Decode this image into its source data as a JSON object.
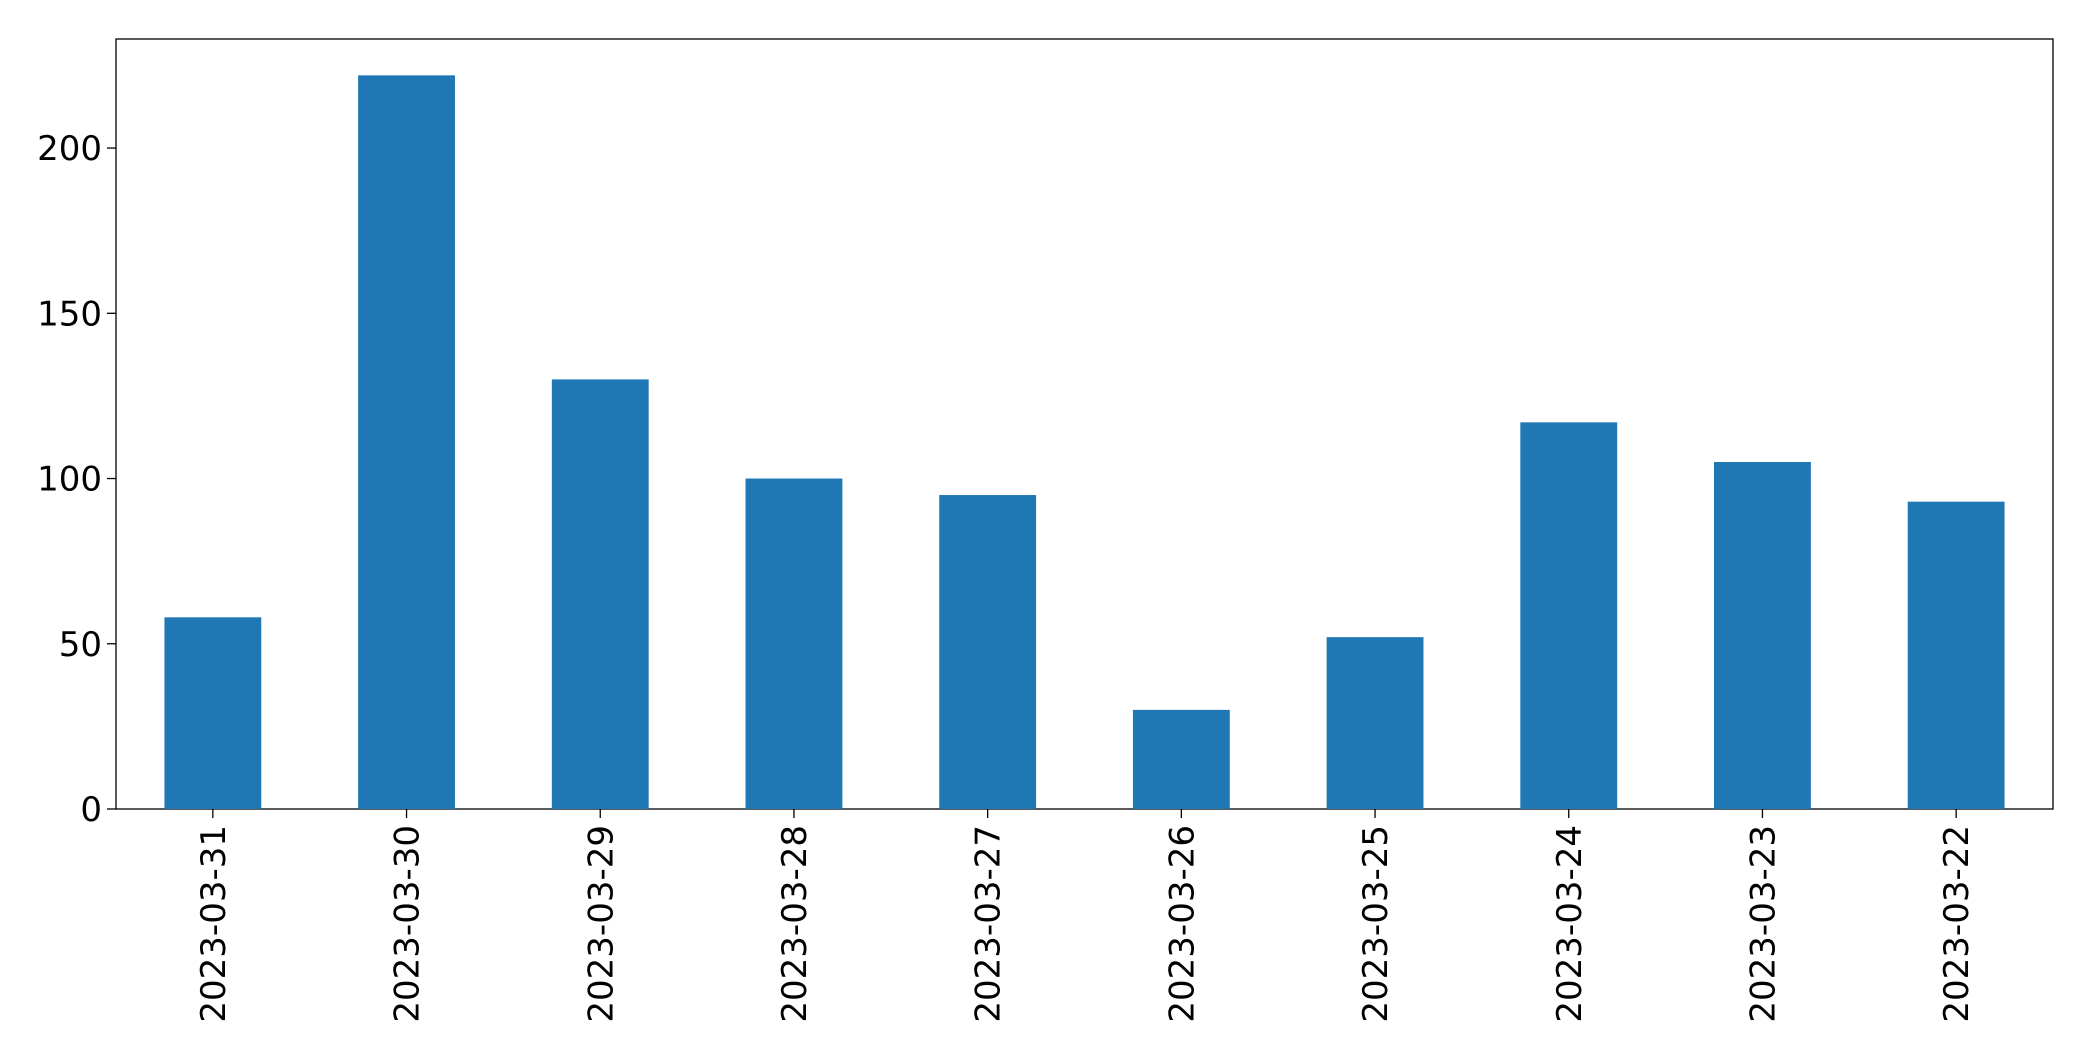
{
  "chart_data": {
    "type": "bar",
    "categories": [
      "2023-03-31",
      "2023-03-30",
      "2023-03-29",
      "2023-03-28",
      "2023-03-27",
      "2023-03-26",
      "2023-03-25",
      "2023-03-24",
      "2023-03-23",
      "2023-03-22"
    ],
    "values": [
      58,
      222,
      130,
      100,
      95,
      30,
      52,
      117,
      105,
      93
    ],
    "color": "#1f77b4",
    "ylim": [
      0,
      233
    ],
    "yticks": [
      0,
      50,
      100,
      150,
      200
    ],
    "grid": false
  }
}
